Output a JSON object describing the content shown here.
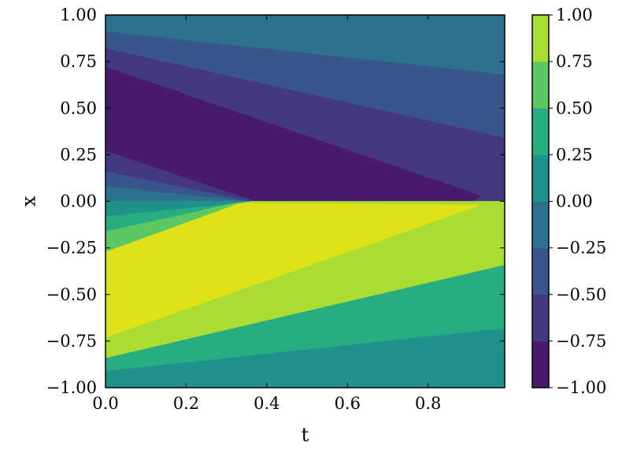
{
  "chart_data": {
    "type": "heatmap",
    "subtype": "filled-contour",
    "title": "",
    "xlabel": "t",
    "ylabel": "x",
    "xlim": [
      0.0,
      0.99
    ],
    "ylim": [
      -1.0,
      1.0
    ],
    "x_ticks": [
      "0.0",
      "0.2",
      "0.4",
      "0.6",
      "0.8"
    ],
    "y_ticks": [
      "1.00",
      "0.75",
      "0.50",
      "0.25",
      "0.00",
      "−0.25",
      "−0.50",
      "−0.75",
      "−1.00"
    ],
    "colorbar": {
      "range": [
        -1.0,
        1.0
      ],
      "ticks": [
        "1.00",
        "0.75",
        "0.50",
        "0.25",
        "0.00",
        "−0.25",
        "−0.50",
        "−0.75",
        "−1.00"
      ],
      "levels": [
        -1.0,
        -0.75,
        -0.5,
        -0.25,
        0.0,
        0.25,
        0.5,
        0.75,
        1.0
      ],
      "colors": [
        "#481a6c",
        "#453781",
        "#39568c",
        "#2c728e",
        "#21918c",
        "#27ad81",
        "#5cc863",
        "#aadc32",
        "#dde318"
      ]
    },
    "regions": [
      {
        "band": 4,
        "color": "#2c728e",
        "polygon": [
          [
            0.0,
            1.0
          ],
          [
            0.99,
            1.0
          ],
          [
            0.99,
            0.68
          ],
          [
            0.0,
            0.91
          ]
        ]
      },
      {
        "band": 3,
        "color": "#39568c",
        "polygon": [
          [
            0.0,
            0.91
          ],
          [
            0.99,
            0.68
          ],
          [
            0.99,
            0.34
          ],
          [
            0.0,
            0.82
          ]
        ]
      },
      {
        "band": 2,
        "color": "#453781",
        "polygon": [
          [
            0.0,
            0.82
          ],
          [
            0.99,
            0.34
          ],
          [
            0.99,
            0.0
          ],
          [
            0.0,
            0.0
          ]
        ]
      },
      {
        "band": 1,
        "color": "#481a6c",
        "polygon": [
          [
            0.0,
            0.72
          ],
          [
            0.93,
            0.03
          ],
          [
            0.91,
            0.0
          ],
          [
            0.37,
            0.0
          ],
          [
            0.0,
            0.27
          ]
        ]
      },
      {
        "band": 2,
        "color": "#453781",
        "polygon": [
          [
            0.0,
            0.27
          ],
          [
            0.37,
            0.0
          ],
          [
            0.0,
            0.16
          ]
        ]
      },
      {
        "band": 3,
        "color": "#39568c",
        "polygon": [
          [
            0.0,
            0.16
          ],
          [
            0.36,
            0.0
          ],
          [
            0.0,
            0.08
          ]
        ]
      },
      {
        "band": 4,
        "color": "#2c728e",
        "polygon": [
          [
            0.0,
            0.08
          ],
          [
            0.35,
            0.0
          ],
          [
            0.0,
            0.0
          ]
        ]
      },
      {
        "band": 5,
        "color": "#21918c",
        "polygon": [
          [
            0.0,
            0.0
          ],
          [
            0.99,
            0.0
          ],
          [
            0.99,
            -1.0
          ],
          [
            0.0,
            -1.0
          ]
        ]
      },
      {
        "band": 6,
        "color": "#27ad81",
        "polygon": [
          [
            0.0,
            -0.08
          ],
          [
            0.99,
            -0.34
          ],
          [
            0.99,
            -0.68
          ],
          [
            0.0,
            -0.91
          ]
        ]
      },
      {
        "band": 7,
        "color": "#5cc863",
        "polygon": [
          [
            0.0,
            -0.16
          ],
          [
            0.99,
            0.0
          ],
          [
            0.99,
            -0.34
          ],
          [
            0.0,
            -0.82
          ]
        ]
      },
      {
        "band": 8,
        "color": "#aadc32",
        "polygon": [
          [
            0.0,
            -0.08
          ],
          [
            0.35,
            0.0
          ],
          [
            0.99,
            0.0
          ],
          [
            0.99,
            -0.34
          ],
          [
            0.0,
            -0.84
          ]
        ]
      },
      {
        "band": 9,
        "color": "#dde318",
        "polygon": [
          [
            0.0,
            -0.27
          ],
          [
            0.33,
            -0.01
          ],
          [
            0.93,
            -0.02
          ],
          [
            0.0,
            -0.73
          ]
        ]
      },
      {
        "band": 7,
        "color": "#5cc863",
        "polygon": [
          [
            0.0,
            -0.27
          ],
          [
            0.33,
            -0.01
          ],
          [
            0.0,
            -0.16
          ]
        ]
      },
      {
        "band": 6,
        "color": "#27ad81",
        "polygon": [
          [
            0.0,
            -0.16
          ],
          [
            0.34,
            0.0
          ],
          [
            0.0,
            -0.08
          ]
        ]
      },
      {
        "band": 5,
        "color": "#21918c",
        "polygon": [
          [
            0.0,
            0.0
          ],
          [
            0.36,
            0.0
          ],
          [
            0.0,
            -0.08
          ]
        ]
      }
    ],
    "grid": false,
    "legend": "colorbar-right"
  }
}
